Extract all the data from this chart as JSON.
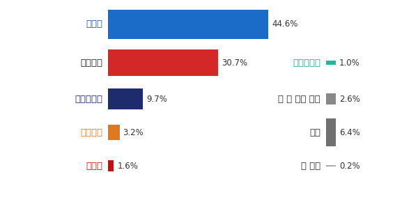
{
  "left_bars": [
    {
      "label": "민주당",
      "value": 44.6,
      "color": "#1B6CC8",
      "label_color": "#1B4FA8"
    },
    {
      "label": "국민의힘",
      "value": 30.7,
      "color": "#D42828",
      "label_color": "#222222"
    },
    {
      "label": "조국혁신당",
      "value": 9.7,
      "color": "#1E2C6E",
      "label_color": "#1E2C6E"
    },
    {
      "label": "개혁신당",
      "value": 3.2,
      "color": "#E07820",
      "label_color": "#E07820"
    },
    {
      "label": "진보당",
      "value": 1.6,
      "color": "#C01010",
      "label_color": "#C01010"
    }
  ],
  "right_bars": [
    {
      "label": "새로운미래",
      "value": 1.0,
      "color": "#26B5A0",
      "label_color": "#26A090"
    },
    {
      "label": "그 외 다른 정당",
      "value": 2.6,
      "color": "#888888",
      "label_color": "#333333"
    },
    {
      "label": "없음",
      "value": 6.4,
      "color": "#707070",
      "label_color": "#333333"
    },
    {
      "label": "잘 모름",
      "value": 0.2,
      "color": "#AAAAAA",
      "label_color": "#333333"
    }
  ],
  "background_color": "#ffffff"
}
